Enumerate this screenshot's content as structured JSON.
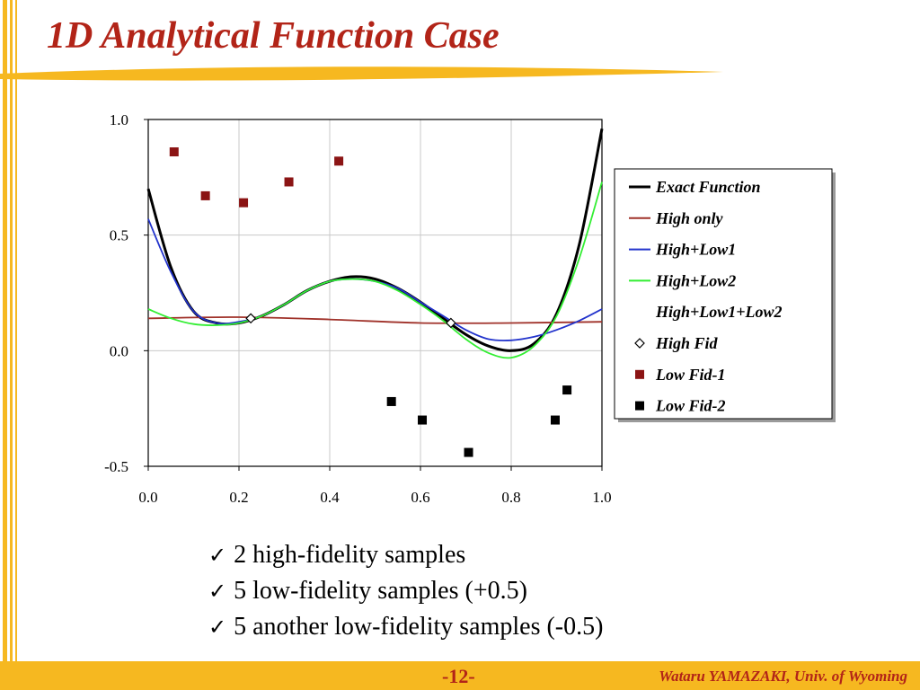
{
  "slide": {
    "title": "1D Analytical Function Case",
    "bullets": [
      "2 high-fidelity samples",
      "5 low-fidelity samples (+0.5)",
      "5 another low-fidelity samples (-0.5)"
    ],
    "check_icon": "check-icon",
    "page_number": "-12-",
    "author": "Wataru YAMAZAKI, Univ. of Wyoming",
    "colors": {
      "accent": "#f6b820",
      "title": "#b22418"
    }
  },
  "chart_data": {
    "type": "line",
    "x_range": [
      0.0,
      1.0
    ],
    "y_range": [
      -0.5,
      1.0
    ],
    "x_ticks": [
      "0.0",
      "0.2",
      "0.4",
      "0.6",
      "0.8",
      "1.0"
    ],
    "y_ticks": [
      "1.0",
      "0.5",
      "0.0",
      "-0.5"
    ],
    "grid": true,
    "legend_position": "right",
    "series": [
      {
        "name": "Exact Function",
        "kind": "line",
        "color": "#000000",
        "x": [
          0.0,
          0.05,
          0.1,
          0.15,
          0.2,
          0.25,
          0.3,
          0.35,
          0.4,
          0.45,
          0.5,
          0.55,
          0.6,
          0.65,
          0.7,
          0.75,
          0.8,
          0.85,
          0.9,
          0.95,
          1.0
        ],
        "y": [
          0.7,
          0.36,
          0.17,
          0.12,
          0.12,
          0.15,
          0.2,
          0.26,
          0.3,
          0.32,
          0.31,
          0.27,
          0.21,
          0.14,
          0.07,
          0.02,
          0.0,
          0.03,
          0.16,
          0.46,
          0.96
        ]
      },
      {
        "name": "High only",
        "kind": "line",
        "color": "#a0322a",
        "x": [
          0.0,
          0.2,
          0.4,
          0.6,
          0.8,
          1.0
        ],
        "y": [
          0.14,
          0.145,
          0.135,
          0.12,
          0.12,
          0.125
        ]
      },
      {
        "name": "High+Low1",
        "kind": "line",
        "color": "#2233cc",
        "x": [
          0.0,
          0.05,
          0.1,
          0.15,
          0.2,
          0.25,
          0.3,
          0.35,
          0.4,
          0.45,
          0.5,
          0.55,
          0.6,
          0.65,
          0.7,
          0.75,
          0.8,
          0.85,
          0.9,
          0.95,
          1.0
        ],
        "y": [
          0.57,
          0.34,
          0.17,
          0.12,
          0.125,
          0.15,
          0.2,
          0.26,
          0.3,
          0.31,
          0.3,
          0.27,
          0.21,
          0.15,
          0.09,
          0.05,
          0.045,
          0.06,
          0.09,
          0.13,
          0.18
        ]
      },
      {
        "name": "High+Low2",
        "kind": "line",
        "color": "#33ee33",
        "x": [
          0.0,
          0.05,
          0.1,
          0.15,
          0.2,
          0.25,
          0.3,
          0.35,
          0.4,
          0.45,
          0.5,
          0.55,
          0.6,
          0.65,
          0.7,
          0.75,
          0.8,
          0.85,
          0.9,
          0.95,
          1.0
        ],
        "y": [
          0.18,
          0.14,
          0.115,
          0.11,
          0.12,
          0.15,
          0.2,
          0.26,
          0.3,
          0.31,
          0.3,
          0.26,
          0.2,
          0.13,
          0.05,
          -0.01,
          -0.03,
          0.02,
          0.15,
          0.4,
          0.73
        ]
      },
      {
        "name": "High+Low1+Low2",
        "kind": "line",
        "color": "#ffffff",
        "x": [],
        "y": []
      },
      {
        "name": "High Fid",
        "kind": "marker",
        "marker": "diamond",
        "color": "#000000",
        "x": [
          0.226,
          0.667
        ],
        "y": [
          0.14,
          0.12
        ]
      },
      {
        "name": "Low Fid-1",
        "kind": "marker",
        "marker": "square",
        "color": "#8b1414",
        "x": [
          0.057,
          0.126,
          0.21,
          0.31,
          0.42
        ],
        "y": [
          0.86,
          0.67,
          0.64,
          0.73,
          0.82
        ]
      },
      {
        "name": "Low Fid-2",
        "kind": "marker",
        "marker": "square",
        "color": "#000000",
        "x": [
          0.536,
          0.604,
          0.706,
          0.897,
          0.923
        ],
        "y": [
          -0.22,
          -0.3,
          -0.44,
          -0.3,
          -0.17
        ]
      }
    ]
  }
}
